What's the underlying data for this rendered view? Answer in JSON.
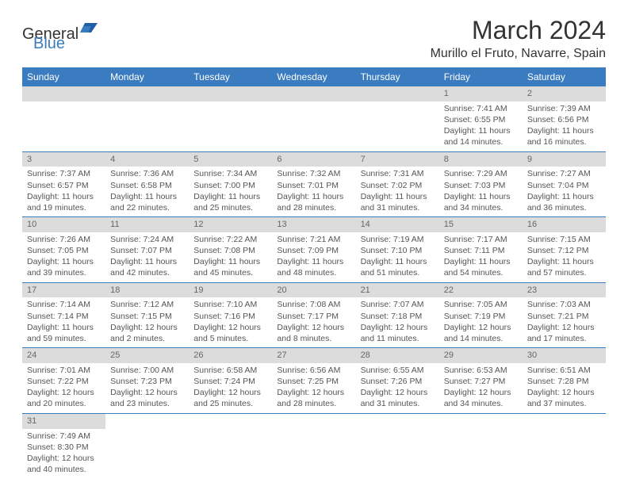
{
  "logo": {
    "general": "General",
    "blue": "Blue"
  },
  "title": "March 2024",
  "location": "Murillo el Fruto, Navarre, Spain",
  "colors": {
    "header_bg": "#3b7bbf",
    "header_text": "#ffffff",
    "daynum_bg": "#dcdcdc",
    "daynum_text": "#666666",
    "body_text": "#555555",
    "divider": "#3b7bbf"
  },
  "weekdays": [
    "Sunday",
    "Monday",
    "Tuesday",
    "Wednesday",
    "Thursday",
    "Friday",
    "Saturday"
  ],
  "weeks": [
    [
      null,
      null,
      null,
      null,
      null,
      {
        "n": "1",
        "sunrise": "7:41 AM",
        "sunset": "6:55 PM",
        "daylight": "11 hours and 14 minutes."
      },
      {
        "n": "2",
        "sunrise": "7:39 AM",
        "sunset": "6:56 PM",
        "daylight": "11 hours and 16 minutes."
      }
    ],
    [
      {
        "n": "3",
        "sunrise": "7:37 AM",
        "sunset": "6:57 PM",
        "daylight": "11 hours and 19 minutes."
      },
      {
        "n": "4",
        "sunrise": "7:36 AM",
        "sunset": "6:58 PM",
        "daylight": "11 hours and 22 minutes."
      },
      {
        "n": "5",
        "sunrise": "7:34 AM",
        "sunset": "7:00 PM",
        "daylight": "11 hours and 25 minutes."
      },
      {
        "n": "6",
        "sunrise": "7:32 AM",
        "sunset": "7:01 PM",
        "daylight": "11 hours and 28 minutes."
      },
      {
        "n": "7",
        "sunrise": "7:31 AM",
        "sunset": "7:02 PM",
        "daylight": "11 hours and 31 minutes."
      },
      {
        "n": "8",
        "sunrise": "7:29 AM",
        "sunset": "7:03 PM",
        "daylight": "11 hours and 34 minutes."
      },
      {
        "n": "9",
        "sunrise": "7:27 AM",
        "sunset": "7:04 PM",
        "daylight": "11 hours and 36 minutes."
      }
    ],
    [
      {
        "n": "10",
        "sunrise": "7:26 AM",
        "sunset": "7:05 PM",
        "daylight": "11 hours and 39 minutes."
      },
      {
        "n": "11",
        "sunrise": "7:24 AM",
        "sunset": "7:07 PM",
        "daylight": "11 hours and 42 minutes."
      },
      {
        "n": "12",
        "sunrise": "7:22 AM",
        "sunset": "7:08 PM",
        "daylight": "11 hours and 45 minutes."
      },
      {
        "n": "13",
        "sunrise": "7:21 AM",
        "sunset": "7:09 PM",
        "daylight": "11 hours and 48 minutes."
      },
      {
        "n": "14",
        "sunrise": "7:19 AM",
        "sunset": "7:10 PM",
        "daylight": "11 hours and 51 minutes."
      },
      {
        "n": "15",
        "sunrise": "7:17 AM",
        "sunset": "7:11 PM",
        "daylight": "11 hours and 54 minutes."
      },
      {
        "n": "16",
        "sunrise": "7:15 AM",
        "sunset": "7:12 PM",
        "daylight": "11 hours and 57 minutes."
      }
    ],
    [
      {
        "n": "17",
        "sunrise": "7:14 AM",
        "sunset": "7:14 PM",
        "daylight": "11 hours and 59 minutes."
      },
      {
        "n": "18",
        "sunrise": "7:12 AM",
        "sunset": "7:15 PM",
        "daylight": "12 hours and 2 minutes."
      },
      {
        "n": "19",
        "sunrise": "7:10 AM",
        "sunset": "7:16 PM",
        "daylight": "12 hours and 5 minutes."
      },
      {
        "n": "20",
        "sunrise": "7:08 AM",
        "sunset": "7:17 PM",
        "daylight": "12 hours and 8 minutes."
      },
      {
        "n": "21",
        "sunrise": "7:07 AM",
        "sunset": "7:18 PM",
        "daylight": "12 hours and 11 minutes."
      },
      {
        "n": "22",
        "sunrise": "7:05 AM",
        "sunset": "7:19 PM",
        "daylight": "12 hours and 14 minutes."
      },
      {
        "n": "23",
        "sunrise": "7:03 AM",
        "sunset": "7:21 PM",
        "daylight": "12 hours and 17 minutes."
      }
    ],
    [
      {
        "n": "24",
        "sunrise": "7:01 AM",
        "sunset": "7:22 PM",
        "daylight": "12 hours and 20 minutes."
      },
      {
        "n": "25",
        "sunrise": "7:00 AM",
        "sunset": "7:23 PM",
        "daylight": "12 hours and 23 minutes."
      },
      {
        "n": "26",
        "sunrise": "6:58 AM",
        "sunset": "7:24 PM",
        "daylight": "12 hours and 25 minutes."
      },
      {
        "n": "27",
        "sunrise": "6:56 AM",
        "sunset": "7:25 PM",
        "daylight": "12 hours and 28 minutes."
      },
      {
        "n": "28",
        "sunrise": "6:55 AM",
        "sunset": "7:26 PM",
        "daylight": "12 hours and 31 minutes."
      },
      {
        "n": "29",
        "sunrise": "6:53 AM",
        "sunset": "7:27 PM",
        "daylight": "12 hours and 34 minutes."
      },
      {
        "n": "30",
        "sunrise": "6:51 AM",
        "sunset": "7:28 PM",
        "daylight": "12 hours and 37 minutes."
      }
    ],
    [
      {
        "n": "31",
        "sunrise": "7:49 AM",
        "sunset": "8:30 PM",
        "daylight": "12 hours and 40 minutes."
      },
      null,
      null,
      null,
      null,
      null,
      null
    ]
  ],
  "labels": {
    "sunrise": "Sunrise:",
    "sunset": "Sunset:",
    "daylight": "Daylight:"
  }
}
